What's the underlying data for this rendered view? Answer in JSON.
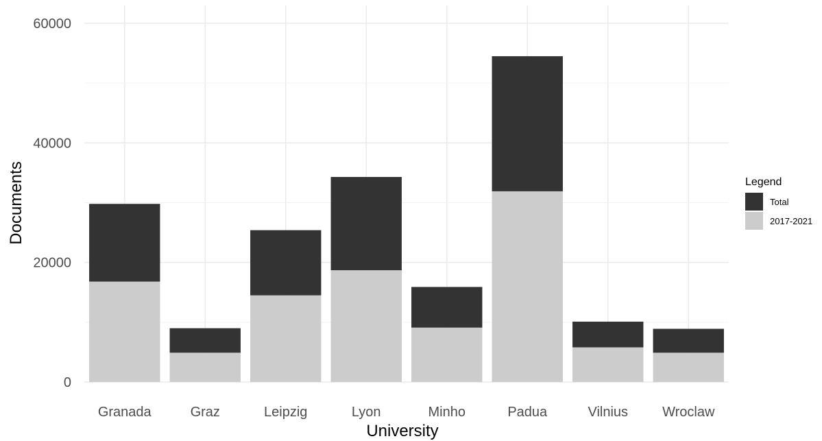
{
  "chart_data": {
    "type": "bar",
    "stacked": true,
    "categories": [
      "Granada",
      "Graz",
      "Leipzig",
      "Lyon",
      "Minho",
      "Padua",
      "Vilnius",
      "Wroclaw"
    ],
    "series": [
      {
        "name": "2017-2021",
        "color": "#cccccc",
        "values": [
          16800,
          4900,
          14500,
          18700,
          9100,
          31900,
          5800,
          4900
        ]
      },
      {
        "name": "Total",
        "color": "#333333",
        "values": [
          13000,
          4100,
          10900,
          15600,
          6800,
          22600,
          4300,
          4000
        ]
      }
    ],
    "xlabel": "University",
    "ylabel": "Documents",
    "ylim": [
      0,
      60000
    ],
    "yticks": [
      0,
      20000,
      40000,
      60000
    ],
    "grid": true,
    "legend": {
      "title": "Legend",
      "position": "right",
      "items": [
        {
          "label": "Total",
          "color": "#333333"
        },
        {
          "label": "2017-2021",
          "color": "#cccccc"
        }
      ]
    }
  }
}
